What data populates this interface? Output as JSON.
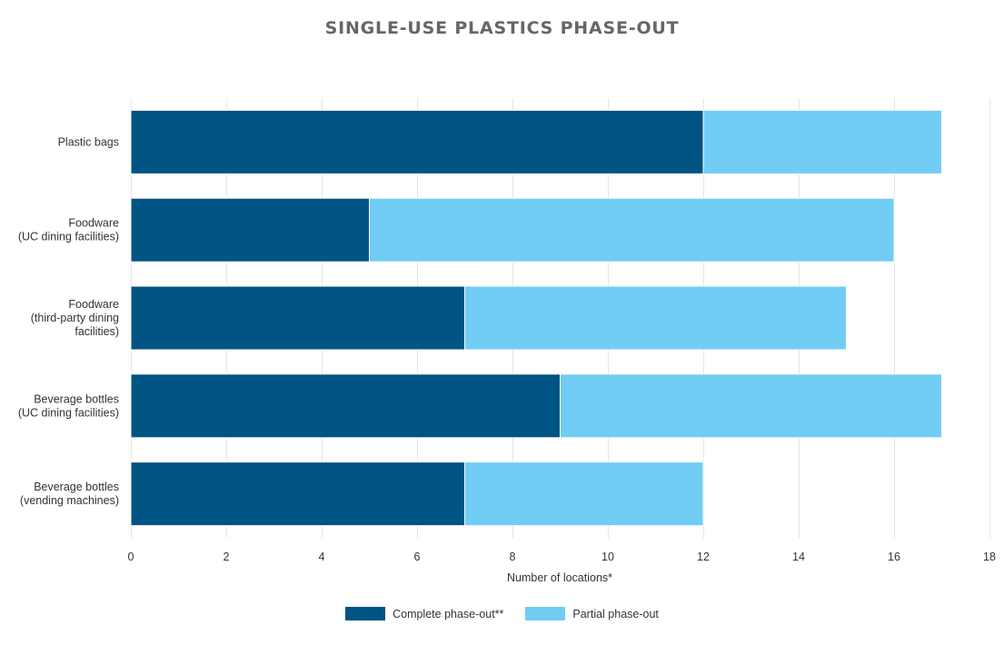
{
  "chart_data": {
    "type": "bar",
    "orientation": "horizontal",
    "stacked": true,
    "title": "SINGLE-USE PLASTICS PHASE-OUT",
    "xlabel": "Number of locations*",
    "ylabel": "",
    "xlim": [
      0,
      18
    ],
    "x_ticks": [
      0,
      2,
      4,
      6,
      8,
      10,
      12,
      14,
      16,
      18
    ],
    "grid": "vertical",
    "legend_position": "bottom",
    "categories": [
      [
        "Plastic bags"
      ],
      [
        "Foodware",
        "(UC dining facilities)"
      ],
      [
        "Foodware",
        "(third-party dining",
        "facilities)"
      ],
      [
        "Beverage bottles",
        "(UC dining facilities)"
      ],
      [
        "Beverage bottles",
        "(vending machines)"
      ]
    ],
    "series": [
      {
        "name": "Complete phase-out**",
        "color": "#005483",
        "values": [
          12,
          5,
          7,
          9,
          7
        ]
      },
      {
        "name": "Partial phase-out",
        "color": "#72cdf4",
        "values": [
          5,
          11,
          8,
          8,
          5
        ]
      }
    ]
  }
}
